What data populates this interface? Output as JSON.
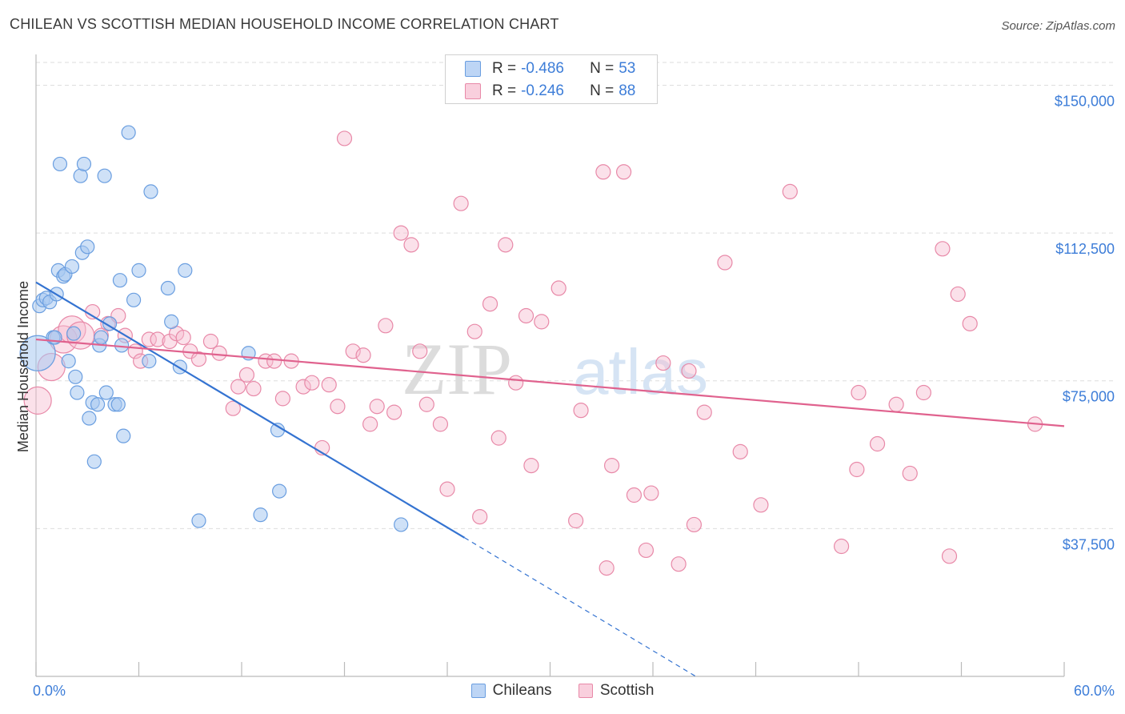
{
  "title": "CHILEAN VS SCOTTISH MEDIAN HOUSEHOLD INCOME CORRELATION CHART",
  "source": "Source: ZipAtlas.com",
  "watermark": {
    "zip": "ZIP",
    "atlas": "atlas"
  },
  "colors": {
    "chileans_fill": "#a8c8f0",
    "chileans_stroke": "#6a9ee0",
    "chileans_line": "#3473d1",
    "scottish_fill": "#f6bdd0",
    "scottish_stroke": "#e889a8",
    "scottish_line": "#e0628e",
    "axis_label": "#3d7dd8",
    "grid": "#dddddd"
  },
  "legend": {
    "rows": [
      {
        "r_label": "R = ",
        "r_value": "-0.486",
        "n_label": "N = ",
        "n_value": "53"
      },
      {
        "r_label": "R = ",
        "r_value": "-0.246",
        "n_label": "N = ",
        "n_value": "88"
      }
    ]
  },
  "chart_data": {
    "type": "scatter",
    "title": "CHILEAN VS SCOTTISH MEDIAN HOUSEHOLD INCOME CORRELATION CHART",
    "xlabel": "",
    "ylabel": "Median Household Income",
    "xlim": [
      0,
      60
    ],
    "ylim": [
      0,
      157000
    ],
    "x_tick_labels": [
      "0.0%",
      "60.0%"
    ],
    "y_ticks": [
      37500,
      75000,
      112500,
      150000
    ],
    "y_tick_labels": [
      "$37,500",
      "$75,000",
      "$112,500",
      "$150,000"
    ],
    "grid": true,
    "legend_position": "bottom",
    "series": [
      {
        "name": "Chileans",
        "r": -0.486,
        "n": 53,
        "trend": {
          "x": [
            0,
            25
          ],
          "y": [
            100000,
            35200
          ],
          "dashed_to": [
            38.5,
            0
          ]
        },
        "points": [
          [
            0.1,
            82000,
            26
          ],
          [
            0.2,
            94000,
            12
          ],
          [
            0.4,
            95500,
            10
          ],
          [
            0.6,
            96000,
            10
          ],
          [
            0.8,
            95000,
            10
          ],
          [
            1.0,
            86000,
            10
          ],
          [
            1.1,
            86000,
            10
          ],
          [
            1.2,
            97000,
            10
          ],
          [
            1.3,
            103000,
            10
          ],
          [
            1.4,
            130000,
            10
          ],
          [
            1.6,
            101500,
            10
          ],
          [
            1.7,
            102000,
            10
          ],
          [
            1.9,
            80000,
            10
          ],
          [
            2.1,
            104000,
            10
          ],
          [
            2.2,
            87000,
            10
          ],
          [
            2.3,
            76000,
            10
          ],
          [
            2.4,
            72000,
            10
          ],
          [
            2.6,
            127000,
            10
          ],
          [
            2.7,
            107500,
            10
          ],
          [
            2.8,
            130000,
            10
          ],
          [
            3.0,
            109000,
            10
          ],
          [
            3.1,
            65500,
            10
          ],
          [
            3.3,
            69500,
            10
          ],
          [
            3.4,
            54500,
            10
          ],
          [
            3.6,
            69000,
            10
          ],
          [
            3.7,
            84000,
            10
          ],
          [
            3.8,
            86000,
            10
          ],
          [
            4.0,
            127000,
            10
          ],
          [
            4.1,
            72000,
            10
          ],
          [
            4.3,
            89500,
            10
          ],
          [
            4.6,
            69000,
            10
          ],
          [
            4.8,
            69000,
            10
          ],
          [
            4.9,
            100500,
            10
          ],
          [
            5.0,
            84000,
            10
          ],
          [
            5.1,
            61000,
            10
          ],
          [
            5.4,
            138000,
            10
          ],
          [
            5.7,
            95500,
            10
          ],
          [
            6.0,
            103000,
            10
          ],
          [
            6.7,
            123000,
            10
          ],
          [
            6.6,
            80000,
            10
          ],
          [
            7.7,
            98500,
            10
          ],
          [
            7.9,
            90000,
            10
          ],
          [
            8.4,
            78500,
            10
          ],
          [
            8.7,
            103000,
            10
          ],
          [
            9.5,
            39500,
            10
          ],
          [
            12.4,
            82000,
            10
          ],
          [
            13.1,
            41000,
            10
          ],
          [
            14.1,
            62500,
            10
          ],
          [
            14.2,
            47000,
            10
          ],
          [
            21.3,
            38500,
            10
          ]
        ]
      },
      {
        "name": "Scottish",
        "r": -0.246,
        "n": 88,
        "trend": {
          "x": [
            0,
            60
          ],
          "y": [
            85500,
            63500
          ]
        },
        "points": [
          [
            0.1,
            70000,
            14
          ],
          [
            0.9,
            78500,
            14
          ],
          [
            1.6,
            85500,
            14
          ],
          [
            2.1,
            88000,
            14
          ],
          [
            2.6,
            86500,
            14
          ],
          [
            3.3,
            92500,
            10
          ],
          [
            3.8,
            86500,
            10
          ],
          [
            4.2,
            89500,
            10
          ],
          [
            4.8,
            91500,
            10
          ],
          [
            5.2,
            86500,
            10
          ],
          [
            5.8,
            82500,
            10
          ],
          [
            6.1,
            80000,
            10
          ],
          [
            6.6,
            85500,
            10
          ],
          [
            7.1,
            85500,
            10
          ],
          [
            7.8,
            85000,
            10
          ],
          [
            8.2,
            87000,
            10
          ],
          [
            8.6,
            86000,
            10
          ],
          [
            9.0,
            82500,
            10
          ],
          [
            9.5,
            80500,
            10
          ],
          [
            10.2,
            85000,
            10
          ],
          [
            10.7,
            82000,
            10
          ],
          [
            11.5,
            68000,
            10
          ],
          [
            11.8,
            73500,
            10
          ],
          [
            12.3,
            76500,
            10
          ],
          [
            12.7,
            73000,
            10
          ],
          [
            13.4,
            80000,
            10
          ],
          [
            13.9,
            80000,
            10
          ],
          [
            14.4,
            70500,
            10
          ],
          [
            14.9,
            80000,
            10
          ],
          [
            15.6,
            73500,
            10
          ],
          [
            16.1,
            74500,
            10
          ],
          [
            16.7,
            58000,
            10
          ],
          [
            17.1,
            74000,
            10
          ],
          [
            17.6,
            68500,
            10
          ],
          [
            18.0,
            136500,
            10
          ],
          [
            18.5,
            82500,
            10
          ],
          [
            19.1,
            81500,
            10
          ],
          [
            19.5,
            64000,
            10
          ],
          [
            19.9,
            68500,
            10
          ],
          [
            20.4,
            89000,
            10
          ],
          [
            20.9,
            67000,
            10
          ],
          [
            21.3,
            112500,
            10
          ],
          [
            21.9,
            109500,
            10
          ],
          [
            22.4,
            82500,
            10
          ],
          [
            22.8,
            69000,
            10
          ],
          [
            23.6,
            64000,
            10
          ],
          [
            24.0,
            47500,
            10
          ],
          [
            24.8,
            120000,
            10
          ],
          [
            25.6,
            87500,
            10
          ],
          [
            25.9,
            40500,
            10
          ],
          [
            26.5,
            94500,
            10
          ],
          [
            27.0,
            60500,
            10
          ],
          [
            27.4,
            109500,
            10
          ],
          [
            28.0,
            74500,
            10
          ],
          [
            28.6,
            91500,
            10
          ],
          [
            28.9,
            53500,
            10
          ],
          [
            29.5,
            90000,
            10
          ],
          [
            30.5,
            98500,
            10
          ],
          [
            31.5,
            39500,
            10
          ],
          [
            31.8,
            67500,
            10
          ],
          [
            33.1,
            128000,
            10
          ],
          [
            33.3,
            27500,
            10
          ],
          [
            33.6,
            53500,
            10
          ],
          [
            34.3,
            128000,
            10
          ],
          [
            34.9,
            46000,
            10
          ],
          [
            35.6,
            32000,
            10
          ],
          [
            35.9,
            46500,
            10
          ],
          [
            36.6,
            79500,
            10
          ],
          [
            37.5,
            28500,
            10
          ],
          [
            38.1,
            77500,
            10
          ],
          [
            38.4,
            38500,
            10
          ],
          [
            39.0,
            67000,
            10
          ],
          [
            40.2,
            105000,
            10
          ],
          [
            41.1,
            57000,
            10
          ],
          [
            42.3,
            43500,
            10
          ],
          [
            44.0,
            123000,
            10
          ],
          [
            47.0,
            33000,
            10
          ],
          [
            48.0,
            72000,
            10
          ],
          [
            49.1,
            59000,
            10
          ],
          [
            50.2,
            69000,
            10
          ],
          [
            51.0,
            51500,
            10
          ],
          [
            51.8,
            72000,
            10
          ],
          [
            52.9,
            108500,
            10
          ],
          [
            53.3,
            30500,
            10
          ],
          [
            53.8,
            97000,
            10
          ],
          [
            54.5,
            89500,
            10
          ],
          [
            58.3,
            64000,
            10
          ],
          [
            47.9,
            52500,
            10
          ]
        ]
      }
    ]
  }
}
